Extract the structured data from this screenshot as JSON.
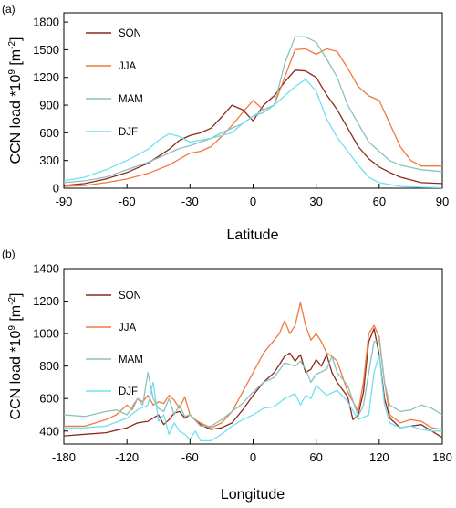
{
  "chart_data": [
    {
      "type": "line",
      "panel_label": "(a)",
      "xlabel": "Latitude",
      "ylabel": "CCN load *10",
      "ylabel_sup1": "9",
      "ylabel_unit": " [m",
      "ylabel_sup2": "-2",
      "ylabel_end": "]",
      "xlim": [
        -90,
        90
      ],
      "ylim": [
        0,
        1900
      ],
      "xticks": [
        -90,
        -60,
        -30,
        0,
        30,
        60,
        90
      ],
      "yticks": [
        0,
        300,
        600,
        900,
        1200,
        1500,
        1800
      ],
      "legend": "top-left",
      "series": [
        {
          "name": "SON",
          "color": "#8b2a1a",
          "x": [
            -90,
            -80,
            -70,
            -60,
            -50,
            -40,
            -35,
            -30,
            -25,
            -20,
            -15,
            -10,
            -5,
            0,
            5,
            10,
            15,
            20,
            25,
            30,
            35,
            40,
            45,
            50,
            55,
            60,
            65,
            70,
            80,
            90
          ],
          "y": [
            30,
            50,
            100,
            170,
            270,
            420,
            520,
            570,
            600,
            650,
            770,
            900,
            850,
            730,
            900,
            1000,
            1150,
            1280,
            1270,
            1200,
            1010,
            850,
            650,
            450,
            320,
            230,
            170,
            120,
            60,
            50
          ]
        },
        {
          "name": "JJA",
          "color": "#f07a3e",
          "x": [
            -90,
            -80,
            -70,
            -60,
            -50,
            -40,
            -30,
            -25,
            -20,
            -15,
            -10,
            -5,
            0,
            5,
            10,
            15,
            20,
            25,
            30,
            35,
            40,
            45,
            50,
            55,
            60,
            65,
            70,
            75,
            80,
            90
          ],
          "y": [
            20,
            30,
            60,
            100,
            160,
            250,
            380,
            400,
            450,
            560,
            680,
            820,
            950,
            850,
            900,
            1200,
            1500,
            1510,
            1450,
            1510,
            1480,
            1300,
            1100,
            1000,
            950,
            700,
            450,
            300,
            240,
            240
          ]
        },
        {
          "name": "MAM",
          "color": "#8cc0c0",
          "x": [
            -90,
            -80,
            -70,
            -60,
            -50,
            -40,
            -35,
            -30,
            -25,
            -20,
            -15,
            -10,
            -5,
            0,
            5,
            10,
            15,
            20,
            25,
            30,
            35,
            40,
            45,
            50,
            55,
            60,
            65,
            70,
            80,
            90
          ],
          "y": [
            60,
            80,
            120,
            200,
            280,
            380,
            430,
            460,
            500,
            540,
            600,
            650,
            700,
            780,
            820,
            900,
            1350,
            1640,
            1640,
            1580,
            1400,
            1200,
            900,
            700,
            500,
            400,
            300,
            250,
            200,
            180
          ]
        },
        {
          "name": "DJF",
          "color": "#72e0f0",
          "x": [
            -90,
            -80,
            -70,
            -60,
            -50,
            -45,
            -40,
            -35,
            -30,
            -20,
            -10,
            -5,
            0,
            5,
            10,
            15,
            20,
            25,
            30,
            35,
            40,
            45,
            50,
            55,
            60,
            70,
            80,
            90
          ],
          "y": [
            80,
            120,
            200,
            300,
            420,
            520,
            590,
            560,
            500,
            540,
            600,
            700,
            780,
            850,
            900,
            1000,
            1100,
            1180,
            1050,
            750,
            550,
            400,
            250,
            120,
            60,
            20,
            10,
            5
          ]
        }
      ]
    },
    {
      "type": "line",
      "panel_label": "(b)",
      "xlabel": "Longitude",
      "ylabel": "CCN load *10",
      "ylabel_sup1": "9",
      "ylabel_unit": " [m",
      "ylabel_sup2": "-2",
      "ylabel_end": "]",
      "xlim": [
        -180,
        180
      ],
      "ylim": [
        320,
        1400
      ],
      "xticks": [
        -180,
        -120,
        -60,
        0,
        60,
        120,
        180
      ],
      "yticks": [
        400,
        600,
        800,
        1000,
        1200,
        1400
      ],
      "legend": "top-left",
      "series": [
        {
          "name": "SON",
          "color": "#8b2a1a",
          "x": [
            -180,
            -160,
            -140,
            -120,
            -110,
            -100,
            -95,
            -90,
            -85,
            -80,
            -75,
            -70,
            -65,
            -60,
            -50,
            -40,
            -30,
            -20,
            -10,
            0,
            10,
            20,
            30,
            35,
            40,
            45,
            50,
            55,
            60,
            65,
            70,
            75,
            80,
            90,
            95,
            100,
            105,
            110,
            115,
            120,
            125,
            130,
            140,
            150,
            160,
            170,
            180
          ],
          "y": [
            370,
            380,
            390,
            420,
            450,
            460,
            480,
            500,
            440,
            470,
            510,
            520,
            480,
            500,
            440,
            410,
            420,
            450,
            530,
            620,
            700,
            760,
            860,
            880,
            830,
            870,
            760,
            780,
            840,
            800,
            870,
            760,
            700,
            610,
            470,
            500,
            640,
            950,
            1030,
            870,
            600,
            480,
            420,
            430,
            440,
            400,
            360
          ]
        },
        {
          "name": "JJA",
          "color": "#f07a3e",
          "x": [
            -180,
            -160,
            -150,
            -140,
            -130,
            -120,
            -115,
            -110,
            -105,
            -100,
            -95,
            -90,
            -85,
            -80,
            -75,
            -70,
            -65,
            -60,
            -55,
            -50,
            -40,
            -30,
            -20,
            -10,
            0,
            10,
            20,
            25,
            30,
            35,
            40,
            45,
            50,
            55,
            60,
            65,
            70,
            75,
            80,
            90,
            100,
            105,
            110,
            115,
            120,
            125,
            130,
            140,
            150,
            160,
            170,
            180
          ],
          "y": [
            430,
            430,
            450,
            470,
            500,
            560,
            530,
            600,
            580,
            620,
            560,
            580,
            570,
            620,
            590,
            540,
            610,
            500,
            470,
            450,
            420,
            450,
            520,
            640,
            760,
            880,
            960,
            1000,
            1080,
            1000,
            1050,
            1190,
            1050,
            960,
            1000,
            950,
            880,
            860,
            830,
            640,
            520,
            700,
            1000,
            1050,
            980,
            700,
            500,
            450,
            470,
            460,
            420,
            410
          ]
        },
        {
          "name": "MAM",
          "color": "#8cc0c0",
          "x": [
            -180,
            -160,
            -140,
            -130,
            -120,
            -110,
            -105,
            -100,
            -95,
            -90,
            -85,
            -80,
            -75,
            -70,
            -65,
            -60,
            -50,
            -40,
            -30,
            -20,
            -10,
            0,
            10,
            20,
            30,
            40,
            45,
            50,
            55,
            60,
            70,
            75,
            80,
            90,
            100,
            105,
            110,
            115,
            120,
            125,
            130,
            140,
            150,
            160,
            170,
            180
          ],
          "y": [
            500,
            490,
            520,
            530,
            500,
            600,
            560,
            760,
            600,
            540,
            520,
            600,
            500,
            560,
            490,
            500,
            430,
            430,
            470,
            520,
            570,
            640,
            700,
            730,
            820,
            800,
            830,
            780,
            700,
            750,
            780,
            860,
            760,
            680,
            490,
            560,
            760,
            950,
            960,
            700,
            560,
            520,
            530,
            560,
            540,
            500
          ]
        },
        {
          "name": "DJF",
          "color": "#72e0f0",
          "x": [
            -180,
            -160,
            -140,
            -120,
            -110,
            -100,
            -95,
            -90,
            -85,
            -80,
            -75,
            -70,
            -65,
            -60,
            -55,
            -50,
            -40,
            -30,
            -20,
            -10,
            0,
            10,
            20,
            30,
            40,
            45,
            50,
            55,
            60,
            70,
            80,
            90,
            100,
            110,
            115,
            120,
            125,
            130,
            140,
            150,
            160,
            170,
            180
          ],
          "y": [
            420,
            420,
            430,
            480,
            530,
            560,
            700,
            460,
            500,
            380,
            450,
            400,
            380,
            350,
            400,
            340,
            340,
            380,
            430,
            470,
            500,
            540,
            550,
            600,
            630,
            560,
            620,
            600,
            680,
            620,
            650,
            580,
            470,
            500,
            760,
            870,
            560,
            450,
            420,
            430,
            410,
            400,
            400
          ]
        }
      ]
    }
  ]
}
